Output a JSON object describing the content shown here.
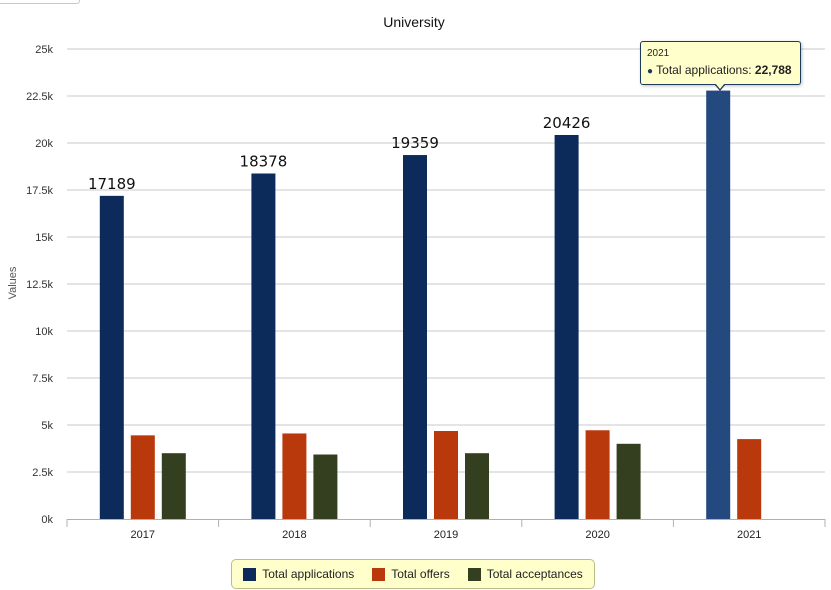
{
  "chart_data": {
    "type": "bar",
    "title": "University",
    "xlabel": "",
    "ylabel": "Values",
    "ylim": [
      0,
      25000
    ],
    "yticks": [
      0,
      2500,
      5000,
      7500,
      10000,
      12500,
      15000,
      17500,
      20000,
      22500,
      25000
    ],
    "ytick_labels": [
      "0k",
      "2.5k",
      "5k",
      "7.5k",
      "10k",
      "12.5k",
      "15k",
      "17.5k",
      "20k",
      "22.5k",
      "25k"
    ],
    "categories": [
      "2017",
      "2018",
      "2019",
      "2020",
      "2021"
    ],
    "grid": true,
    "legend_position": "bottom",
    "series": [
      {
        "name": "Total applications",
        "color": "#0d2b5a",
        "values": [
          17189,
          18378,
          19359,
          20426,
          22788
        ],
        "data_labels": [
          "17189",
          "18378",
          "19359",
          "20426",
          ""
        ]
      },
      {
        "name": "Total offers",
        "color": "#b9380c",
        "values": [
          4450,
          4550,
          4680,
          4720,
          4250
        ],
        "data_labels": [
          "",
          "",
          "",
          "",
          ""
        ]
      },
      {
        "name": "Total acceptances",
        "color": "#343f1f",
        "values": [
          3500,
          3430,
          3500,
          4000,
          null
        ],
        "data_labels": [
          "",
          "",
          "",
          "",
          ""
        ]
      }
    ],
    "highlight": {
      "series": 0,
      "category": 4,
      "color": "#24497f"
    }
  },
  "tooltip": {
    "header": "2021",
    "series_label": "Total applications:",
    "value": "22,788"
  }
}
